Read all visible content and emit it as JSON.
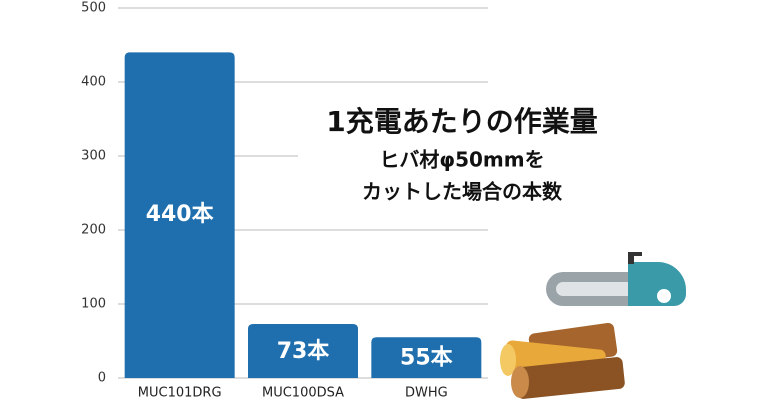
{
  "chart_data": {
    "type": "bar",
    "title": "1充電あたりの作業量",
    "subtitle": [
      "ヒバ材φ50mmを",
      "カットした場合の本数"
    ],
    "categories": [
      "MUC101DRG",
      "MUC100DSA",
      "DWHG"
    ],
    "values": [
      440,
      73,
      55
    ],
    "value_labels": [
      "440本",
      "73本",
      "55本"
    ],
    "color": "#1f6fae",
    "ylim": [
      0,
      500
    ],
    "yticks": [
      0,
      100,
      200,
      300,
      400,
      500
    ],
    "grid": true
  }
}
